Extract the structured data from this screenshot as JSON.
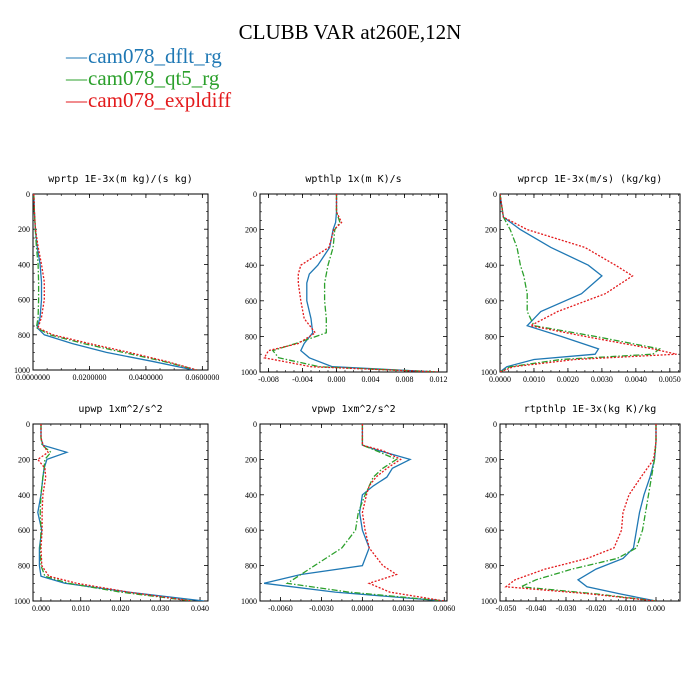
{
  "title": "CLUBB VAR at260E,12N",
  "legend": [
    {
      "name": "cam078_dflt_rg",
      "color": "#1f78b4",
      "dash": "solid"
    },
    {
      "name": "cam078_qt5_rg",
      "color": "#2ca02c",
      "dash": "dashdot"
    },
    {
      "name": "cam078_expldiff",
      "color": "#e31a1c",
      "dash": "dotted"
    }
  ],
  "chart_data": [
    {
      "type": "line",
      "title": "wprtp  1E-3x(m kg)/(s kg)",
      "xlim": [
        0,
        0.062
      ],
      "ylim": [
        1000,
        0
      ],
      "xticks": [
        0,
        0.02,
        0.04,
        0.06
      ],
      "xtick_labels": [
        "0.0000000",
        "0.0200000",
        "0.0400000",
        "0.0600000"
      ],
      "yticks": [
        0,
        200,
        400,
        600,
        800,
        1000
      ],
      "ytick_labels": [
        "0",
        "200",
        "400",
        "600",
        "800",
        "1000"
      ],
      "y": [
        0,
        100,
        200,
        300,
        400,
        500,
        600,
        700,
        760,
        800,
        850,
        900,
        950,
        1000
      ],
      "series": [
        {
          "name": "cam078_dflt_rg",
          "values": [
            0.0003,
            0.0005,
            0.0008,
            0.0015,
            0.0025,
            0.003,
            0.003,
            0.0025,
            0.0015,
            0.004,
            0.014,
            0.026,
            0.042,
            0.057
          ]
        },
        {
          "name": "cam078_qt5_rg",
          "values": [
            0.0003,
            0.0005,
            0.0008,
            0.0012,
            0.0018,
            0.002,
            0.002,
            0.0018,
            0.0012,
            0.006,
            0.018,
            0.032,
            0.046,
            0.058
          ]
        },
        {
          "name": "cam078_expldiff",
          "values": [
            0.0003,
            0.0005,
            0.0009,
            0.0018,
            0.003,
            0.004,
            0.004,
            0.003,
            0.0018,
            0.007,
            0.02,
            0.034,
            0.047,
            0.058
          ]
        }
      ]
    },
    {
      "type": "line",
      "title": "wpthlp  1x(m K)/s",
      "xlim": [
        -0.009,
        0.013
      ],
      "ylim": [
        1000,
        0
      ],
      "xticks": [
        -0.008,
        -0.004,
        0,
        0.004,
        0.008,
        0.012
      ],
      "xtick_labels": [
        "-0.008",
        "-0.004",
        "0.000",
        "0.004",
        "0.008",
        "0.012"
      ],
      "yticks": [
        0,
        200,
        400,
        600,
        800,
        1000
      ],
      "ytick_labels": [
        "0",
        "200",
        "400",
        "600",
        "800",
        "1000"
      ],
      "y": [
        0,
        100,
        160,
        200,
        300,
        400,
        450,
        500,
        600,
        700,
        780,
        840,
        880,
        920,
        970,
        1000
      ],
      "series": [
        {
          "name": "cam078_dflt_rg",
          "values": [
            0,
            0,
            -0.0001,
            -0.0004,
            -0.0008,
            -0.0022,
            -0.0032,
            -0.0035,
            -0.0035,
            -0.003,
            -0.0028,
            -0.0038,
            -0.0042,
            -0.0032,
            -0.0005,
            0.012
          ]
        },
        {
          "name": "cam078_qt5_rg",
          "values": [
            0,
            0,
            0.0004,
            -0.0002,
            -0.0004,
            -0.001,
            -0.0012,
            -0.0014,
            -0.0014,
            -0.0012,
            -0.0012,
            -0.0048,
            -0.0075,
            -0.0068,
            -0.002,
            0.012
          ]
        },
        {
          "name": "cam078_expldiff",
          "values": [
            0,
            0,
            0.0006,
            -0.0003,
            -0.0009,
            -0.0042,
            -0.0045,
            -0.0045,
            -0.0042,
            -0.0038,
            -0.0025,
            -0.0045,
            -0.008,
            -0.0085,
            -0.003,
            0.012
          ]
        }
      ]
    },
    {
      "type": "line",
      "title": "wprcp  1E-3x(m/s) (kg/kg)",
      "xlim": [
        0,
        0.0053
      ],
      "ylim": [
        1000,
        0
      ],
      "xticks": [
        0,
        0.001,
        0.002,
        0.003,
        0.004,
        0.005
      ],
      "xtick_labels": [
        "0.0000",
        "0.0010",
        "0.0020",
        "0.0030",
        "0.0040",
        "0.0050"
      ],
      "yticks": [
        0,
        200,
        400,
        600,
        800,
        1000
      ],
      "ytick_labels": [
        "0",
        "200",
        "400",
        "600",
        "800",
        "1000"
      ],
      "y": [
        0,
        130,
        200,
        300,
        400,
        460,
        560,
        660,
        740,
        800,
        870,
        900,
        930,
        970,
        1000
      ],
      "series": [
        {
          "name": "cam078_dflt_rg",
          "values": [
            0,
            0.0001,
            0.0006,
            0.0015,
            0.0026,
            0.003,
            0.0024,
            0.0012,
            0.0008,
            0.0018,
            0.0029,
            0.0028,
            0.001,
            0.0002,
            0
          ]
        },
        {
          "name": "cam078_qt5_rg",
          "values": [
            0,
            0.0001,
            0.0003,
            0.0005,
            0.0006,
            0.0007,
            0.0008,
            0.0008,
            0.001,
            0.0028,
            0.0047,
            0.0045,
            0.0018,
            0.0003,
            0
          ]
        },
        {
          "name": "cam078_expldiff",
          "values": [
            0,
            0.0001,
            0.0008,
            0.0025,
            0.0034,
            0.0039,
            0.0031,
            0.0017,
            0.0009,
            0.0025,
            0.0045,
            0.0052,
            0.0022,
            0.0004,
            0
          ]
        }
      ]
    },
    {
      "type": "line",
      "title": "upwp  1xm^2/s^2",
      "xlim": [
        -0.002,
        0.042
      ],
      "ylim": [
        1000,
        0
      ],
      "xticks": [
        0,
        0.01,
        0.02,
        0.03,
        0.04
      ],
      "xtick_labels": [
        "0.000",
        "0.010",
        "0.020",
        "0.030",
        "0.040"
      ],
      "yticks": [
        0,
        200,
        400,
        600,
        800,
        1000
      ],
      "ytick_labels": [
        "0",
        "200",
        "400",
        "600",
        "800",
        "1000"
      ],
      "y": [
        0,
        80,
        120,
        160,
        200,
        250,
        300,
        400,
        500,
        600,
        700,
        800,
        860,
        900,
        950,
        1000
      ],
      "series": [
        {
          "name": "cam078_dflt_rg",
          "values": [
            0,
            0,
            0.0005,
            0.0065,
            0.0015,
            0.0008,
            0.0005,
            0.0,
            -0.0008,
            0.0002,
            -0.0004,
            -0.0004,
            0.0,
            0.006,
            0.022,
            0.041
          ]
        },
        {
          "name": "cam078_qt5_rg",
          "values": [
            0,
            0,
            0.0003,
            0.0025,
            0.001,
            0.0008,
            0.0005,
            0.0,
            -0.0002,
            0.0,
            -0.0002,
            0.0,
            0.001,
            0.007,
            0.02,
            0.038
          ]
        },
        {
          "name": "cam078_expldiff",
          "values": [
            0,
            0,
            0.0006,
            0.0018,
            -0.0008,
            0.001,
            0.0012,
            0.0005,
            0.0003,
            0.0003,
            0.0,
            0.0002,
            0.002,
            0.009,
            0.022,
            0.038
          ]
        }
      ]
    },
    {
      "type": "line",
      "title": "vpwp  1xm^2/s^2",
      "xlim": [
        -0.0075,
        0.0062
      ],
      "ylim": [
        1000,
        0
      ],
      "xticks": [
        -0.006,
        -0.003,
        0,
        0.003,
        0.006
      ],
      "xtick_labels": [
        "-0.0060",
        "-0.0030",
        "0.0000",
        "0.0030",
        "0.0060"
      ],
      "yticks": [
        0,
        200,
        400,
        600,
        800,
        1000
      ],
      "ytick_labels": [
        "0",
        "200",
        "400",
        "600",
        "800",
        "1000"
      ],
      "y": [
        0,
        120,
        150,
        200,
        250,
        300,
        350,
        400,
        500,
        600,
        700,
        800,
        850,
        900,
        950,
        1000
      ],
      "series": [
        {
          "name": "cam078_dflt_rg",
          "values": [
            0,
            0,
            0.0012,
            0.0035,
            0.0022,
            0.0018,
            0.0008,
            0.0,
            -0.0002,
            0.0,
            0.0005,
            0.0,
            -0.0045,
            -0.0072,
            -0.002,
            0.006
          ]
        },
        {
          "name": "cam078_qt5_rg",
          "values": [
            0,
            0,
            0.001,
            0.0025,
            0.0015,
            0.0008,
            0.0005,
            0.0002,
            -0.0003,
            -0.0005,
            -0.0015,
            -0.0035,
            -0.0045,
            -0.0055,
            -0.001,
            0.006
          ]
        },
        {
          "name": "cam078_expldiff",
          "values": [
            0,
            0,
            0.0015,
            0.0028,
            0.0018,
            0.001,
            0.0005,
            0.0003,
            0.0,
            0.0002,
            0.0005,
            0.0015,
            0.0025,
            0.0005,
            0.002,
            0.006
          ]
        }
      ]
    },
    {
      "type": "line",
      "title": "rtpthlp  1E-3x(kg K)/kg",
      "xlim": [
        -0.052,
        0.008
      ],
      "ylim": [
        1000,
        0
      ],
      "xticks": [
        -0.05,
        -0.04,
        -0.03,
        -0.02,
        -0.01,
        0
      ],
      "xtick_labels": [
        "-0.050",
        "-0.040",
        "-0.030",
        "-0.020",
        "-0.010",
        "0.000"
      ],
      "yticks": [
        0,
        200,
        400,
        600,
        800,
        1000
      ],
      "ytick_labels": [
        "0",
        "200",
        "400",
        "600",
        "800",
        "1000"
      ],
      "y": [
        0,
        100,
        200,
        300,
        400,
        500,
        600,
        700,
        760,
        820,
        880,
        920,
        960,
        1000
      ],
      "series": [
        {
          "name": "cam078_dflt_rg",
          "values": [
            0,
            0,
            -0.0005,
            -0.002,
            -0.004,
            -0.0055,
            -0.0065,
            -0.0075,
            -0.011,
            -0.02,
            -0.026,
            -0.023,
            -0.012,
            0
          ]
        },
        {
          "name": "cam078_qt5_rg",
          "values": [
            0,
            0,
            -0.0005,
            -0.0015,
            -0.0025,
            -0.0035,
            -0.0045,
            -0.0065,
            -0.013,
            -0.028,
            -0.04,
            -0.045,
            -0.02,
            0
          ]
        },
        {
          "name": "cam078_expldiff",
          "values": [
            0,
            0,
            -0.0008,
            -0.005,
            -0.009,
            -0.011,
            -0.0115,
            -0.014,
            -0.023,
            -0.037,
            -0.047,
            -0.05,
            -0.022,
            0
          ]
        }
      ]
    }
  ]
}
